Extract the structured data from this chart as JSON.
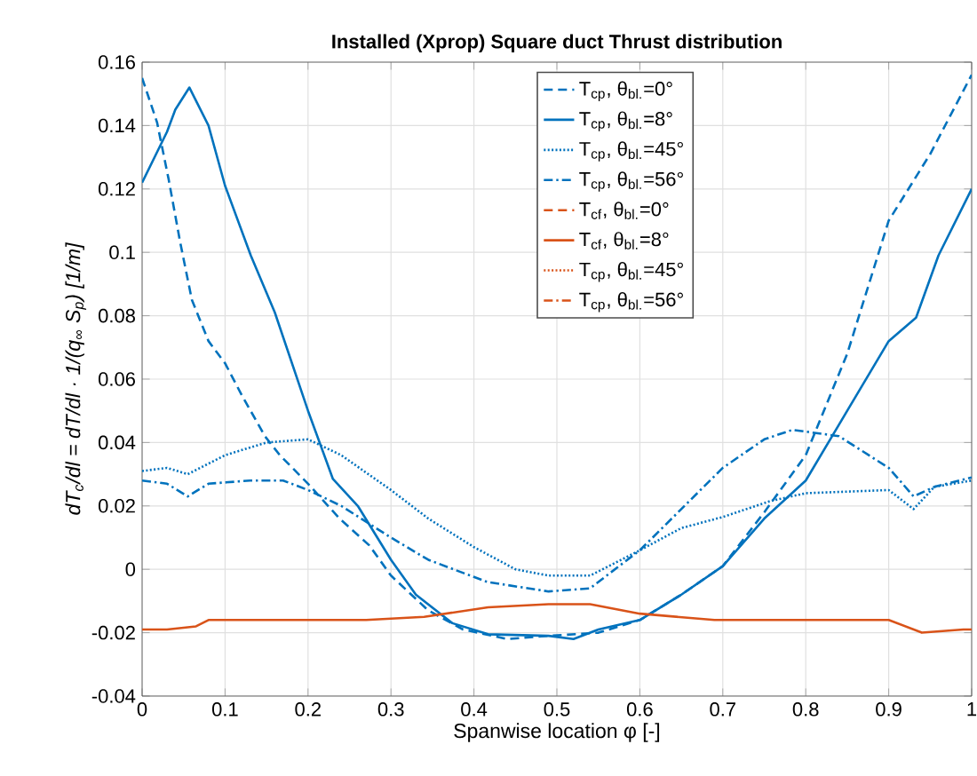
{
  "chart_data": {
    "type": "line",
    "title": "Installed (Xprop) Square duct Thrust distribution",
    "xlabel": "Spanwise location φ [-]",
    "ylabel": "dT$_{c}$/dl = dT/dl · 1/(q$_{∞}$ S$_{p}$) [1/m]",
    "xlim": [
      0,
      1
    ],
    "ylim": [
      -0.04,
      0.16
    ],
    "xticks": [
      0,
      0.1,
      0.2,
      0.3,
      0.4,
      0.5,
      0.6,
      0.7,
      0.8,
      0.9,
      1
    ],
    "yticks": [
      -0.04,
      -0.02,
      0,
      0.02,
      0.04,
      0.06,
      0.08,
      0.1,
      0.12,
      0.14,
      0.16
    ],
    "grid": true,
    "legend": "top right",
    "marker": "none",
    "series": [
      {
        "name": "T$_{cp}$, θ$_{bl.}$=0°",
        "color": "#0072bd",
        "line_style": "dashed",
        "x": [
          0,
          0.018,
          0.032,
          0.046,
          0.06,
          0.08,
          0.1,
          0.12,
          0.148,
          0.166,
          0.2,
          0.238,
          0.274,
          0.3,
          0.345,
          0.387,
          0.44,
          0.49,
          0.55,
          0.6,
          0.65,
          0.7,
          0.75,
          0.8,
          0.85,
          0.9,
          0.95,
          1.0
        ],
        "values": [
          0.155,
          0.141,
          0.123,
          0.103,
          0.085,
          0.072,
          0.065,
          0.055,
          0.042,
          0.036,
          0.027,
          0.016,
          0.0075,
          -0.002,
          -0.013,
          -0.019,
          -0.022,
          -0.021,
          -0.02,
          -0.016,
          -0.008,
          0.001,
          0.018,
          0.036,
          0.068,
          0.11,
          0.131,
          0.156
        ]
      },
      {
        "name": "T$_{cp}$, θ$_{bl.}$=8°",
        "color": "#0072bd",
        "line_style": "solid",
        "x": [
          0,
          0.03,
          0.04,
          0.057,
          0.08,
          0.1,
          0.131,
          0.16,
          0.2,
          0.23,
          0.26,
          0.3,
          0.33,
          0.374,
          0.417,
          0.49,
          0.52,
          0.55,
          0.6,
          0.65,
          0.7,
          0.75,
          0.8,
          0.85,
          0.9,
          0.933,
          0.96,
          1.0
        ],
        "values": [
          0.122,
          0.138,
          0.145,
          0.152,
          0.14,
          0.121,
          0.099,
          0.081,
          0.05,
          0.0285,
          0.02,
          0.003,
          -0.008,
          -0.017,
          -0.0205,
          -0.021,
          -0.022,
          -0.019,
          -0.016,
          -0.008,
          0.001,
          0.016,
          0.028,
          0.05,
          0.072,
          0.0794,
          0.099,
          0.12
        ]
      },
      {
        "name": "T$_{cp}$, θ$_{bl.}$=45°",
        "color": "#0072bd",
        "line_style": "dotted",
        "x": [
          0,
          0.03,
          0.055,
          0.1,
          0.15,
          0.2,
          0.24,
          0.3,
          0.345,
          0.4,
          0.45,
          0.49,
          0.54,
          0.6,
          0.65,
          0.7,
          0.757,
          0.8,
          0.9,
          0.93,
          0.955,
          1.0
        ],
        "values": [
          0.031,
          0.032,
          0.03,
          0.036,
          0.04,
          0.041,
          0.036,
          0.025,
          0.016,
          0.007,
          0.0,
          -0.002,
          -0.002,
          0.006,
          0.013,
          0.0165,
          0.0215,
          0.024,
          0.025,
          0.019,
          0.026,
          0.028
        ]
      },
      {
        "name": "T$_{cp}$, θ$_{bl.}$=56°",
        "color": "#0072bd",
        "line_style": "dashdot",
        "x": [
          0,
          0.03,
          0.055,
          0.08,
          0.13,
          0.17,
          0.2,
          0.24,
          0.3,
          0.345,
          0.416,
          0.49,
          0.54,
          0.6,
          0.65,
          0.7,
          0.75,
          0.784,
          0.84,
          0.9,
          0.93,
          0.955,
          1.0
        ],
        "values": [
          0.028,
          0.027,
          0.023,
          0.027,
          0.028,
          0.028,
          0.025,
          0.02,
          0.01,
          0.003,
          -0.004,
          -0.007,
          -0.006,
          0.006,
          0.019,
          0.032,
          0.041,
          0.044,
          0.042,
          0.032,
          0.023,
          0.026,
          0.029
        ]
      },
      {
        "name": "T$_{cf}$, θ$_{bl.}$=0°",
        "color": "#d95319",
        "line_style": "dashed",
        "values": [
          null,
          null,
          null,
          null,
          null,
          null,
          null,
          null,
          null,
          null,
          null,
          null,
          null,
          null,
          null
        ]
      },
      {
        "name": "T$_{cf}$, θ$_{bl.}$=8°",
        "color": "#d95319",
        "line_style": "solid",
        "x": [
          0,
          0.03,
          0.065,
          0.08,
          0.27,
          0.34,
          0.417,
          0.49,
          0.54,
          0.6,
          0.69,
          0.9,
          0.94,
          0.99,
          1.0
        ],
        "values": [
          -0.019,
          -0.019,
          -0.018,
          -0.016,
          -0.016,
          -0.015,
          -0.012,
          -0.011,
          -0.011,
          -0.014,
          -0.016,
          -0.016,
          -0.02,
          -0.019,
          -0.019
        ]
      },
      {
        "name": "T$_{cp}$, θ$_{bl.}$=45°",
        "color": "#d95319",
        "line_style": "dotted",
        "values": [
          null,
          null,
          null,
          null,
          null,
          null,
          null,
          null,
          null,
          null,
          null,
          null,
          null,
          null,
          null
        ]
      },
      {
        "name": "T$_{cp}$, θ$_{bl.}$=56°",
        "color": "#d95319",
        "line_style": "dashdot",
        "values": [
          null,
          null,
          null,
          null,
          null,
          null,
          null,
          null,
          null,
          null,
          null,
          null,
          null,
          null,
          null
        ]
      }
    ]
  }
}
